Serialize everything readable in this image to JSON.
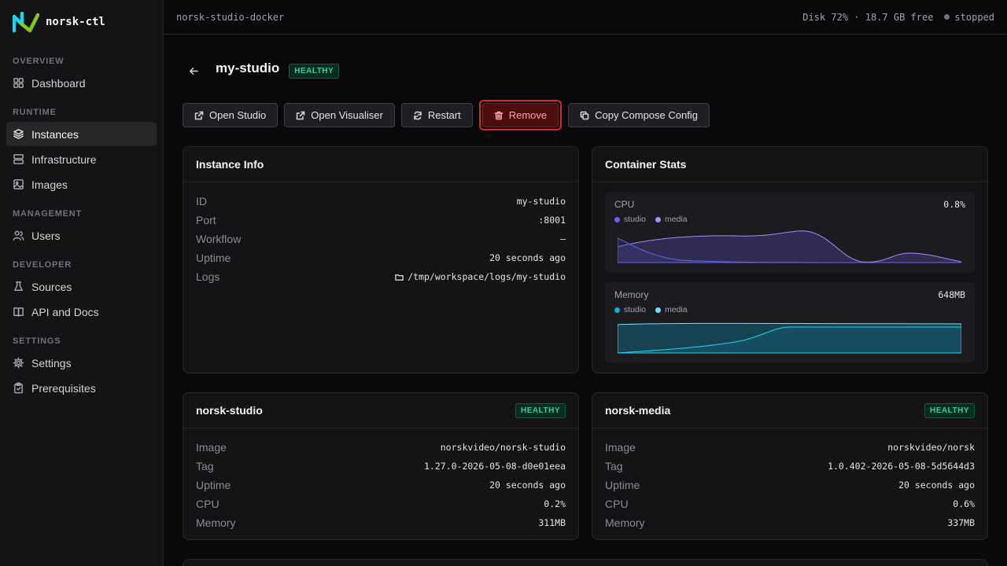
{
  "app": {
    "name": "norsk-ctl"
  },
  "sidebar": {
    "sections": [
      {
        "heading": "OVERVIEW",
        "items": [
          {
            "label": "Dashboard",
            "icon": "grid-icon"
          }
        ]
      },
      {
        "heading": "RUNTIME",
        "items": [
          {
            "label": "Instances",
            "icon": "layers-icon",
            "active": true
          },
          {
            "label": "Infrastructure",
            "icon": "server-icon"
          },
          {
            "label": "Images",
            "icon": "image-icon"
          }
        ]
      },
      {
        "heading": "MANAGEMENT",
        "items": [
          {
            "label": "Users",
            "icon": "users-icon"
          }
        ]
      },
      {
        "heading": "DEVELOPER",
        "items": [
          {
            "label": "Sources",
            "icon": "flask-icon"
          },
          {
            "label": "API and Docs",
            "icon": "book-icon"
          }
        ]
      },
      {
        "heading": "SETTINGS",
        "items": [
          {
            "label": "Settings",
            "icon": "gear-icon"
          },
          {
            "label": "Prerequisites",
            "icon": "clipboard-icon"
          }
        ]
      }
    ]
  },
  "topbar": {
    "context": "norsk-studio-docker",
    "disk": "Disk 72% · 18.7 GB free",
    "status": "stopped"
  },
  "instance": {
    "name": "my-studio",
    "health": "HEALTHY"
  },
  "actions": {
    "open_studio": "Open Studio",
    "open_visualiser": "Open Visualiser",
    "restart": "Restart",
    "remove": "Remove",
    "copy_compose": "Copy Compose Config"
  },
  "instance_info": {
    "title": "Instance Info",
    "rows": [
      {
        "key": "ID",
        "value": "my-studio"
      },
      {
        "key": "Port",
        "value": ":8001"
      },
      {
        "key": "Workflow",
        "value": "—"
      },
      {
        "key": "Uptime",
        "value": "20 seconds ago"
      },
      {
        "key": "Logs",
        "value": "/tmp/workspace/logs/my-studio"
      }
    ]
  },
  "container_stats": {
    "title": "Container Stats",
    "cpu": {
      "label": "CPU",
      "value": "0.8%",
      "legend": [
        "studio",
        "media"
      ],
      "colors": [
        "#6366f1",
        "#a78bfa"
      ]
    },
    "memory": {
      "label": "Memory",
      "value": "648MB",
      "legend": [
        "studio",
        "media"
      ],
      "colors": [
        "#06b6d4",
        "#67e8f9"
      ]
    }
  },
  "norsk_studio": {
    "title": "norsk-studio",
    "health": "HEALTHY",
    "rows": [
      {
        "key": "Image",
        "value": "norskvideo/norsk-studio"
      },
      {
        "key": "Tag",
        "value": "1.27.0-2026-05-08-d0e01eea"
      },
      {
        "key": "Uptime",
        "value": "20 seconds ago"
      },
      {
        "key": "CPU",
        "value": "0.2%"
      },
      {
        "key": "Memory",
        "value": "311MB"
      }
    ]
  },
  "norsk_media": {
    "title": "norsk-media",
    "health": "HEALTHY",
    "rows": [
      {
        "key": "Image",
        "value": "norskvideo/norsk"
      },
      {
        "key": "Tag",
        "value": "1.0.402-2026-05-08-5d5644d3"
      },
      {
        "key": "Uptime",
        "value": "20 seconds ago"
      },
      {
        "key": "CPU",
        "value": "0.6%"
      },
      {
        "key": "Memory",
        "value": "337MB"
      }
    ]
  }
}
